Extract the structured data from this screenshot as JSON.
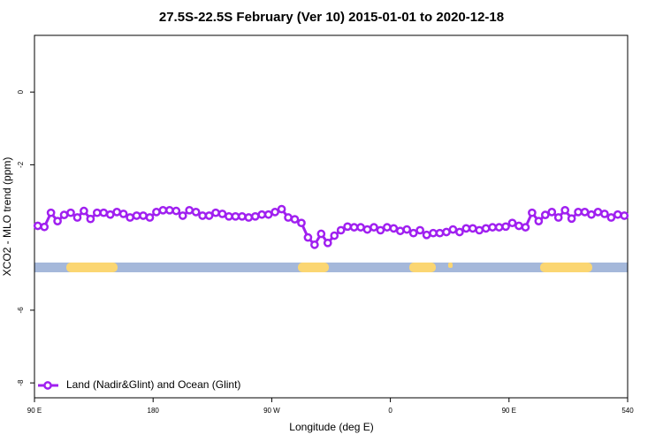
{
  "chart_data": {
    "type": "line",
    "title": "27.5S-22.5S February (Ver 10)   2015-01-01 to 2020-12-18",
    "x_label": "Longitude (deg E)",
    "y_label": "XCO2 - MLO trend (ppm)",
    "xlim": [
      90,
      540
    ],
    "ylim": [
      -8.41,
      1.56
    ],
    "xticks": [
      {
        "value": 90,
        "label": "90 E"
      },
      180,
      {
        "value": 270,
        "label": "90 W"
      },
      {
        "value": 360,
        "label": "0"
      },
      {
        "value": 450,
        "label": "90 E"
      },
      540
    ],
    "yticks": [
      0,
      -2,
      -6,
      -8
    ],
    "legend": "bottom-left",
    "x": [
      92.5,
      97.5,
      102.5,
      107.5,
      112.5,
      117.5,
      122.5,
      127.5,
      132.5,
      137.5,
      142.5,
      147.5,
      152.5,
      157.5,
      162.5,
      167.5,
      172.5,
      177.5,
      182.5,
      187.5,
      192.5,
      197.5,
      202.5,
      207.5,
      212.5,
      217.5,
      222.5,
      227.5,
      232.5,
      237.5,
      242.5,
      247.5,
      252.5,
      257.5,
      262.5,
      267.5,
      272.5,
      277.5,
      282.5,
      287.5,
      292.5,
      297.5,
      302.5,
      307.5,
      312.5,
      317.5,
      322.5,
      327.5,
      332.5,
      337.5,
      342.5,
      347.5,
      352.5,
      357.5,
      362.5,
      367.5,
      372.5,
      377.5,
      382.5,
      387.5,
      392.5,
      397.5,
      402.5,
      407.5,
      412.5,
      417.5,
      422.5,
      427.5,
      432.5,
      437.5,
      442.5,
      447.5,
      452.5,
      457.5,
      462.5,
      467.5,
      472.5,
      477.5,
      482.5,
      487.5,
      492.5,
      497.5,
      502.5,
      507.5,
      512.5,
      517.5,
      522.5,
      527.5,
      532.5,
      537.5
    ],
    "series": [
      {
        "name": "Land (Nadir&Glint) and Ocean (Glint)",
        "color": "#a020f0",
        "values": [
          -3.68,
          -3.71,
          -3.32,
          -3.55,
          -3.38,
          -3.32,
          -3.45,
          -3.27,
          -3.49,
          -3.32,
          -3.32,
          -3.37,
          -3.3,
          -3.35,
          -3.45,
          -3.4,
          -3.4,
          -3.45,
          -3.3,
          -3.25,
          -3.25,
          -3.27,
          -3.4,
          -3.25,
          -3.3,
          -3.4,
          -3.4,
          -3.32,
          -3.35,
          -3.42,
          -3.42,
          -3.42,
          -3.45,
          -3.42,
          -3.37,
          -3.37,
          -3.3,
          -3.22,
          -3.45,
          -3.5,
          -3.6,
          -4.0,
          -4.2,
          -3.9,
          -4.15,
          -3.95,
          -3.8,
          -3.7,
          -3.72,
          -3.72,
          -3.78,
          -3.72,
          -3.8,
          -3.72,
          -3.75,
          -3.82,
          -3.78,
          -3.88,
          -3.8,
          -3.93,
          -3.88,
          -3.88,
          -3.85,
          -3.78,
          -3.85,
          -3.75,
          -3.75,
          -3.8,
          -3.75,
          -3.72,
          -3.72,
          -3.7,
          -3.6,
          -3.68,
          -3.72,
          -3.32,
          -3.55,
          -3.38,
          -3.3,
          -3.45,
          -3.25,
          -3.48,
          -3.3,
          -3.3,
          -3.37,
          -3.3,
          -3.35,
          -3.45,
          -3.37,
          -3.4
        ]
      }
    ]
  }
}
